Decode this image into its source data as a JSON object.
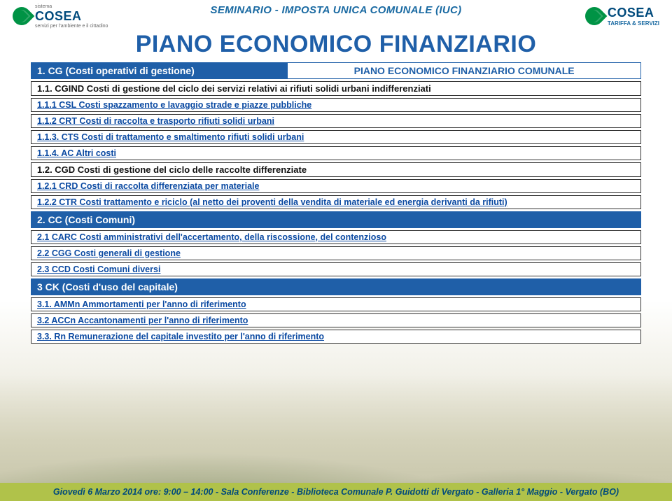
{
  "header": {
    "title": "SEMINARIO - IMPOSTA UNICA COMUNALE (IUC)",
    "logo_left": {
      "name": "COSEA",
      "tagline": "servizi per l'ambiente e il cittadino",
      "pre": "sistema"
    },
    "logo_right": {
      "name": "COSEA",
      "tagline": "TARIFFA & SERVIZI"
    }
  },
  "slide_title": "PIANO ECONOMICO FINANZIARIO",
  "subtitle": "PIANO ECONOMICO FINANZIARIO COMUNALE",
  "sections": {
    "s1": {
      "head": "1. CG (Costi operativi di gestione)",
      "r1": "1.1. CGIND   Costi di gestione del ciclo dei servizi relativi ai rifiuti solidi urbani indifferenziati",
      "r2": "1.1.1  CSL    Costi spazzamento e lavaggio strade e piazze pubbliche",
      "r3": "1.1.2 CRT    Costi di raccolta e trasporto rifiuti solidi urbani",
      "r4": "1.1.3. CTS   Costi di trattamento e smaltimento rifiuti solidi urbani",
      "r5": "1.1.4. AC     Altri costi",
      "r6": "1.2. CGD Costi di gestione del ciclo delle raccolte differenziate",
      "r7": "1.2.1   CRD   Costi di raccolta differenziata per materiale",
      "r8": "1.2.2   CTR   Costi trattamento e riciclo (al netto dei proventi della vendita di materiale ed energia derivanti da rifiuti)"
    },
    "s2": {
      "head": "2. CC (Costi Comuni)",
      "r1": "2.1     CARC  Costi amministrativi dell'accertamento, della riscossione, del contenzioso",
      "r2": "2.2     CGG   Costi generali di gestione",
      "r3": "2.3     CCD    Costi Comuni diversi"
    },
    "s3": {
      "head": "3 CK (Costi d'uso del capitale)",
      "r1": "3.1.    AMMn  Ammortamenti per l'anno di riferimento",
      "r2": "3.2     ACCn  Accantonamenti per l'anno di riferimento",
      "r3": "3.3.    Rn         Remunerazione del capitale investito per l'anno di riferimento"
    }
  },
  "footer": "Giovedì 6 Marzo 2014 ore: 9:00 – 14:00 - Sala Conferenze - Biblioteca Comunale P. Guidotti di Vergato - Galleria 1° Maggio - Vergato (BO)",
  "colors": {
    "brand_blue": "#1f5fa8",
    "brand_green": "#009345",
    "footer_bg": "#b0c24a",
    "text_link": "#0b4aa2"
  }
}
